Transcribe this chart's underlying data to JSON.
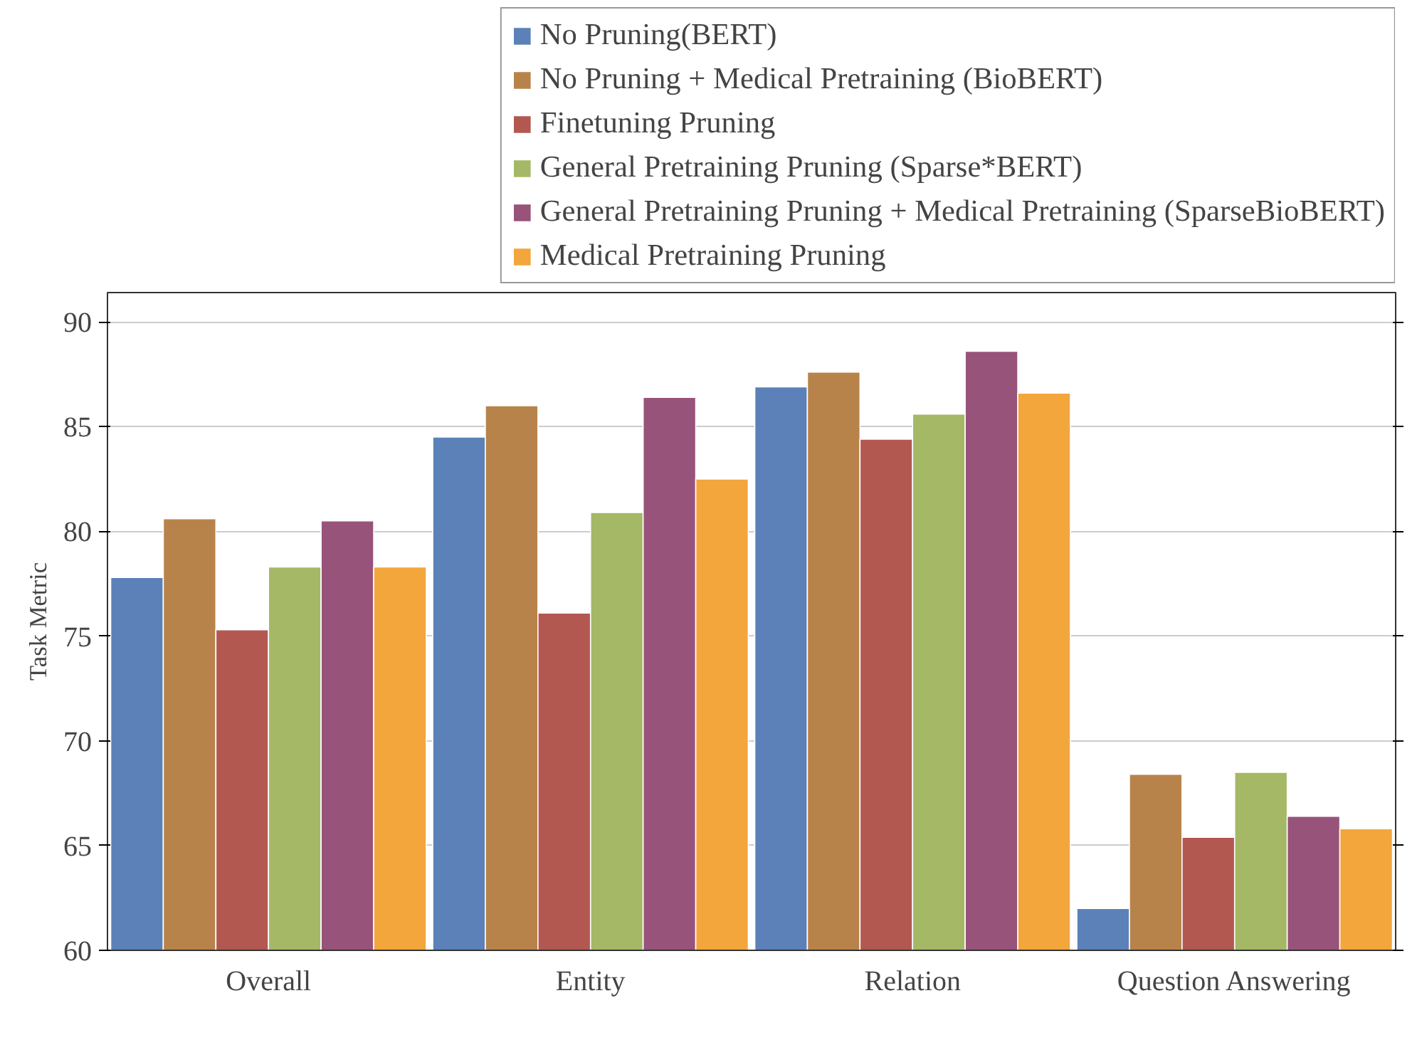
{
  "chart_data": {
    "type": "bar",
    "ylabel": "Task Metric",
    "categories": [
      "Overall",
      "Entity",
      "Relation",
      "Question Answering"
    ],
    "series": [
      {
        "name": "No Pruning(BERT)",
        "color": "#5b81b8",
        "values": [
          77.8,
          84.5,
          86.9,
          62.0
        ]
      },
      {
        "name": "No Pruning + Medical Pretraining (BioBERT)",
        "color": "#b8834b",
        "values": [
          80.6,
          86.0,
          87.6,
          68.4
        ]
      },
      {
        "name": "Finetuning Pruning",
        "color": "#b35850",
        "values": [
          75.3,
          76.1,
          84.4,
          65.4
        ]
      },
      {
        "name": "General Pretraining Pruning (Sparse*BERT)",
        "color": "#a4b866",
        "values": [
          78.3,
          80.9,
          85.6,
          68.5
        ]
      },
      {
        "name": "General Pretraining Pruning + Medical Pretraining (SparseBioBERT)",
        "color": "#97537a",
        "values": [
          80.5,
          86.4,
          88.6,
          66.4
        ]
      },
      {
        "name": "Medical Pretraining Pruning",
        "color": "#f2a63c",
        "values": [
          78.3,
          82.5,
          86.6,
          65.8
        ]
      }
    ],
    "ylim": [
      60,
      91.4
    ],
    "yticks": [
      60,
      65,
      70,
      75,
      80,
      85,
      90
    ],
    "grid": "y",
    "legend": "top right"
  }
}
